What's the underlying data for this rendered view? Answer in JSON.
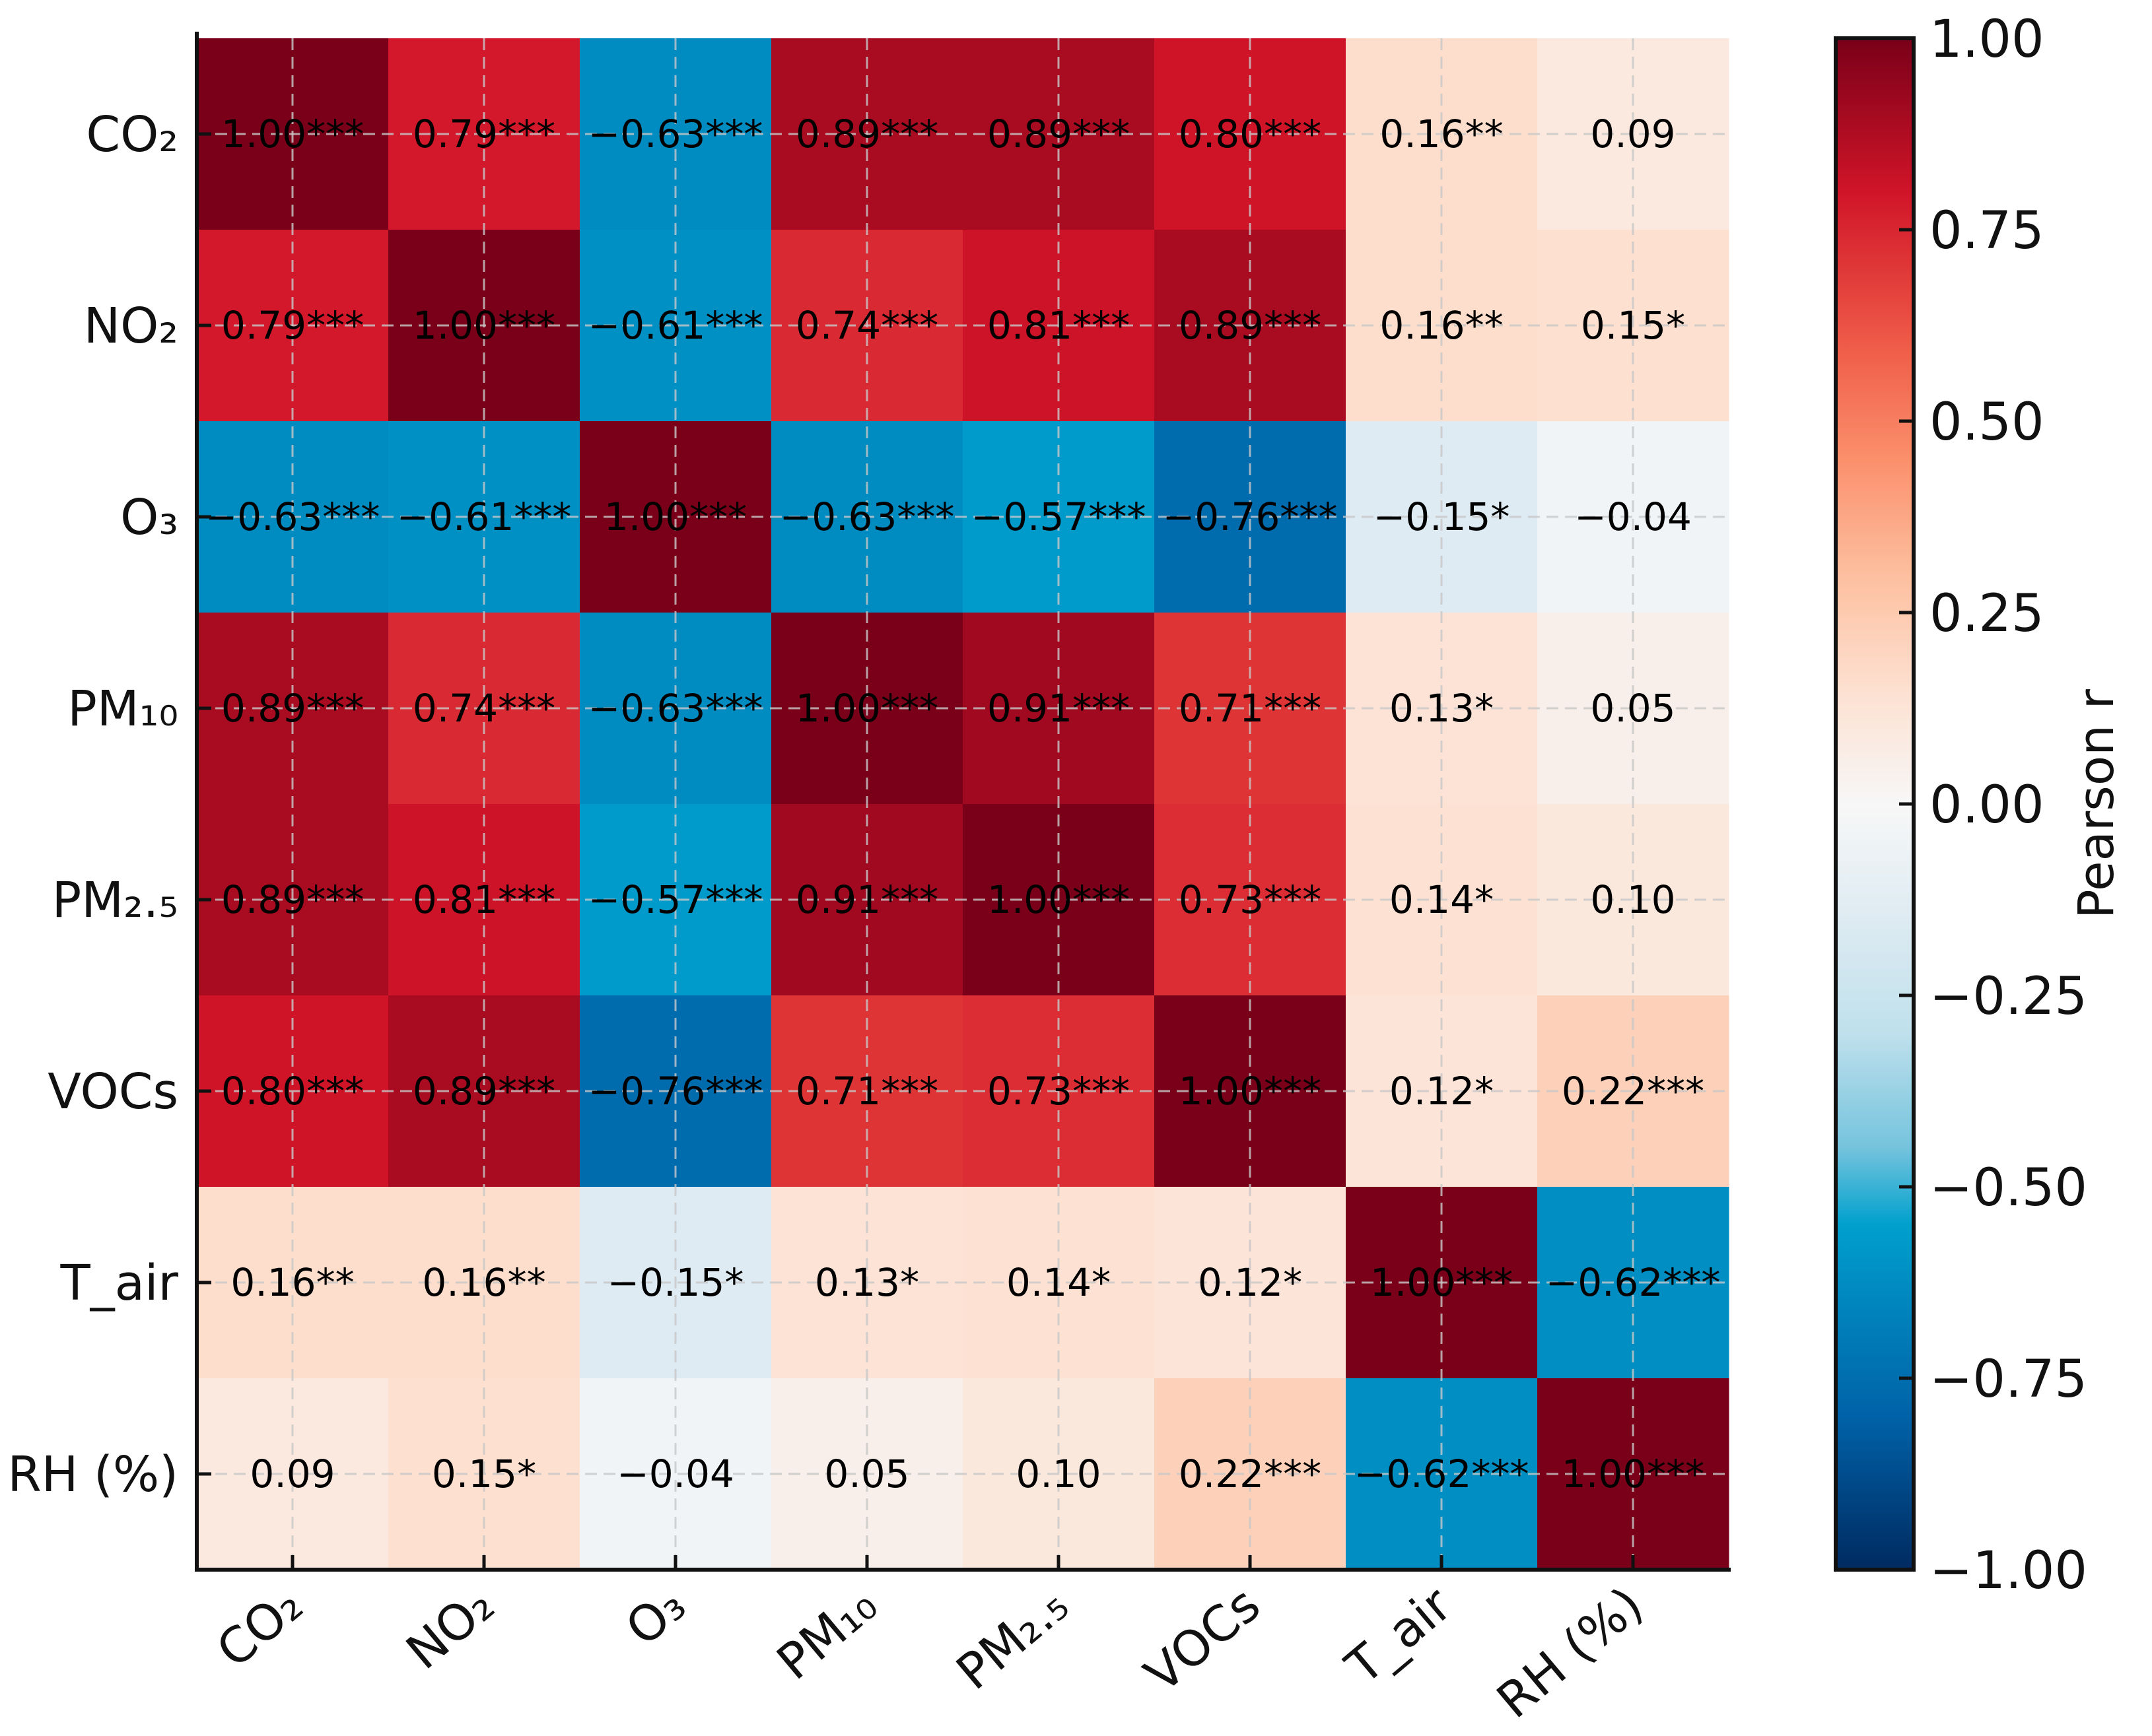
{
  "chart_data": {
    "type": "heatmap",
    "title": "",
    "variables": [
      "CO₂",
      "NO₂",
      "O₃",
      "PM₁₀",
      "PM₂.₅",
      "VOCs",
      "T_air",
      "RH (%)"
    ],
    "values": [
      [
        1.0,
        0.79,
        -0.63,
        0.89,
        0.89,
        0.8,
        0.16,
        0.09
      ],
      [
        0.79,
        1.0,
        -0.61,
        0.74,
        0.81,
        0.89,
        0.16,
        0.15
      ],
      [
        -0.63,
        -0.61,
        1.0,
        -0.63,
        -0.57,
        -0.76,
        -0.15,
        -0.04
      ],
      [
        0.89,
        0.74,
        -0.63,
        1.0,
        0.91,
        0.71,
        0.13,
        0.05
      ],
      [
        0.89,
        0.81,
        -0.57,
        0.91,
        1.0,
        0.73,
        0.14,
        0.1
      ],
      [
        0.8,
        0.89,
        -0.76,
        0.71,
        0.73,
        1.0,
        0.12,
        0.22
      ],
      [
        0.16,
        0.16,
        -0.15,
        0.13,
        0.14,
        0.12,
        1.0,
        -0.62
      ],
      [
        0.09,
        0.15,
        -0.04,
        0.05,
        0.1,
        0.22,
        -0.62,
        1.0
      ]
    ],
    "significance": [
      [
        "***",
        "***",
        "***",
        "***",
        "***",
        "***",
        "**",
        ""
      ],
      [
        "***",
        "***",
        "***",
        "***",
        "***",
        "***",
        "**",
        "*"
      ],
      [
        "***",
        "***",
        "***",
        "***",
        "***",
        "***",
        "*",
        ""
      ],
      [
        "***",
        "***",
        "***",
        "***",
        "***",
        "***",
        "*",
        ""
      ],
      [
        "***",
        "***",
        "***",
        "***",
        "***",
        "***",
        "*",
        ""
      ],
      [
        "***",
        "***",
        "***",
        "***",
        "***",
        "***",
        "*",
        "***"
      ],
      [
        "**",
        "**",
        "*",
        "*",
        "*",
        "*",
        "***",
        "***"
      ],
      [
        "",
        "*",
        "",
        "",
        "",
        "***",
        "***",
        "***"
      ]
    ],
    "colorbar": {
      "label": "Pearson r",
      "range": [
        -1,
        1
      ],
      "ticks": [
        "1.00",
        "0.75",
        "0.50",
        "0.25",
        "0.00",
        "−0.25",
        "−0.50",
        "−0.75",
        "−1.00"
      ],
      "tick_values": [
        1,
        0.75,
        0.5,
        0.25,
        0,
        -0.25,
        -0.5,
        -0.75,
        -1
      ],
      "colormap": "RdBu_r"
    },
    "grid": true
  }
}
